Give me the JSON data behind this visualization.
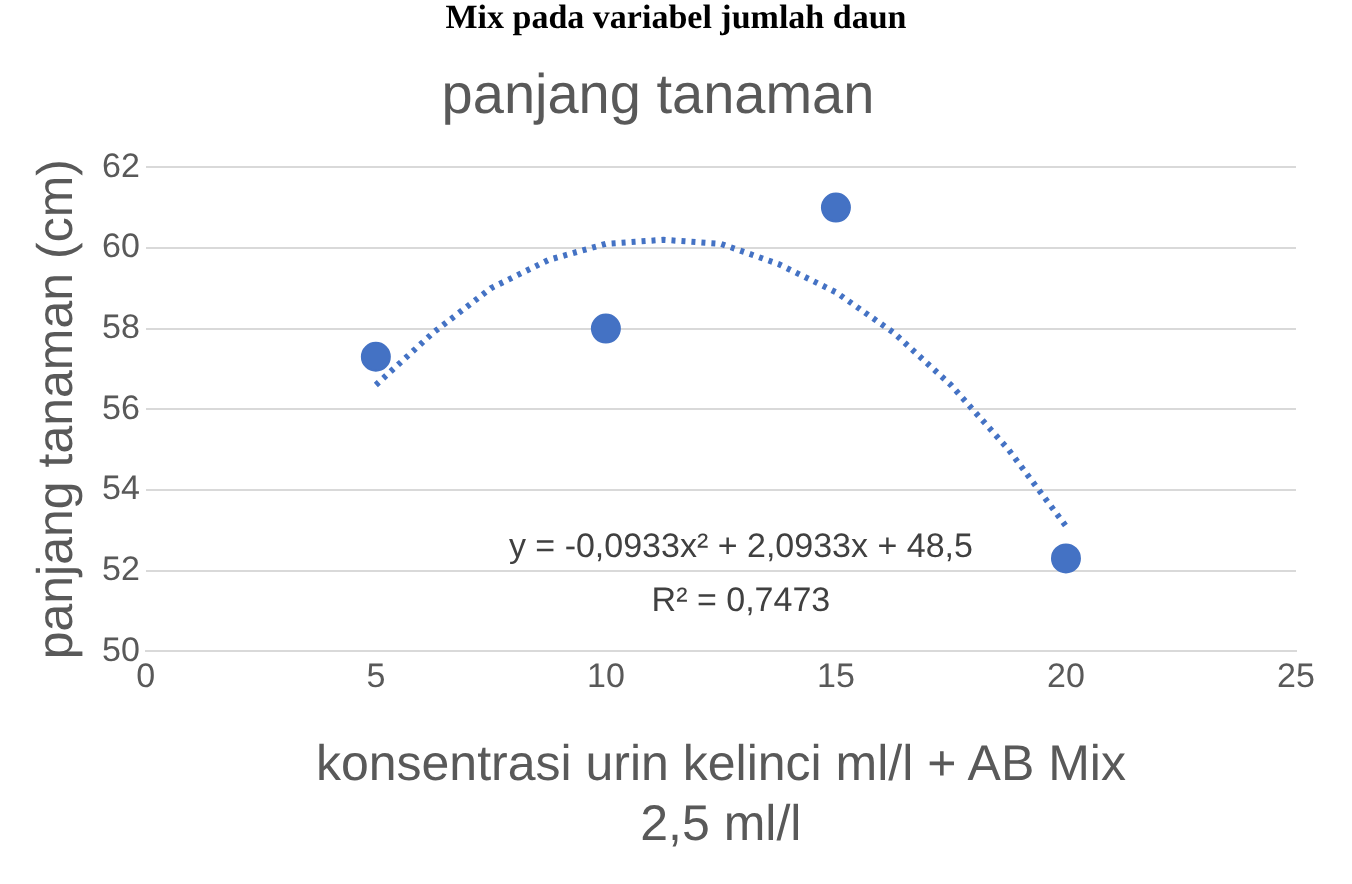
{
  "chart_data": {
    "type": "scatter",
    "title": "panjang tanaman",
    "xlabel": "konsentrasi urin kelinci ml/l + AB Mix 2,5 ml/l",
    "ylabel": "panjang tanaman (cm)",
    "annotations": [
      "Mix pada variabel jumlah daun",
      "y = -0,0933x² + 2,0933x + 48,5",
      "R² = 0,7473"
    ],
    "xlim": [
      0,
      25
    ],
    "xticks": [
      0,
      5,
      10,
      15,
      20,
      25
    ],
    "ylim": [
      50,
      62
    ],
    "yticks": [
      50,
      52,
      54,
      56,
      58,
      60,
      62
    ],
    "grid": "y",
    "legend": false,
    "series": [
      {
        "type": "scatter",
        "color": "#4472c4",
        "marker": "circle",
        "x": [
          5,
          10,
          15,
          20
        ],
        "values": [
          57.3,
          58,
          61,
          52.3
        ]
      },
      {
        "type": "line",
        "color": "#4472c4",
        "line_style": "dotted",
        "marker": "none",
        "x": [
          5,
          6.25,
          7.5,
          8.75,
          10,
          11.25,
          12.5,
          13.75,
          15,
          16.25,
          17.5,
          18.75,
          20
        ],
        "values": [
          56.6,
          57.9,
          59.0,
          59.7,
          60.1,
          60.2,
          60.1,
          59.6,
          58.9,
          57.9,
          56.6,
          55.0,
          53.1
        ]
      }
    ]
  }
}
